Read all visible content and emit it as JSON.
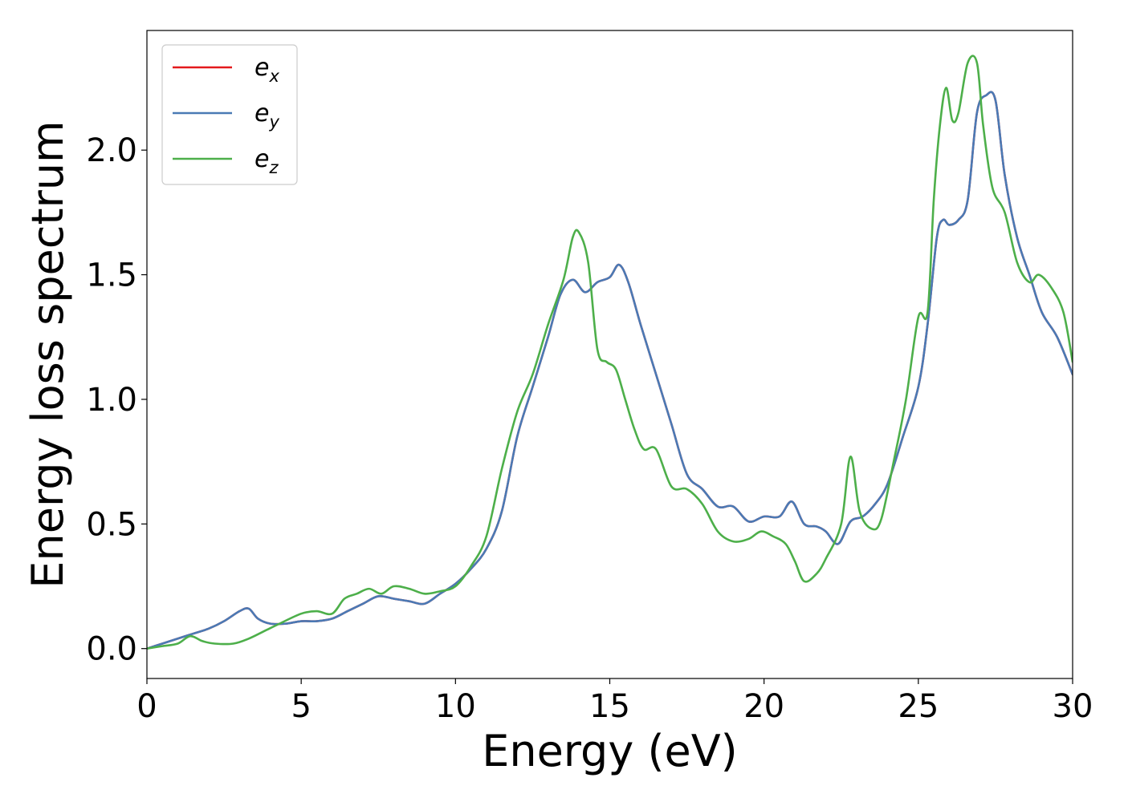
{
  "chart_data": {
    "type": "line",
    "xlabel": "Energy (eV)",
    "ylabel": "Energy loss spectrum",
    "xlim": [
      0,
      30
    ],
    "ylim": [
      -0.12,
      2.48
    ],
    "xticks": [
      0,
      5,
      10,
      15,
      20,
      25,
      30
    ],
    "xtick_labels": [
      "0",
      "5",
      "10",
      "15",
      "20",
      "25",
      "30"
    ],
    "yticks": [
      0.0,
      0.5,
      1.0,
      1.5,
      2.0
    ],
    "ytick_labels": [
      "0.0",
      "0.5",
      "1.0",
      "1.5",
      "2.0"
    ],
    "grid": false,
    "legend_position": "top-left",
    "series": [
      {
        "name": "e_x",
        "base": "e",
        "subscript": "x",
        "color": "#e41a1c",
        "x": [
          0,
          0.5,
          1.0,
          1.5,
          2.0,
          2.5,
          3.0,
          3.3,
          3.6,
          4.0,
          4.5,
          5.0,
          5.5,
          6.0,
          6.5,
          7.0,
          7.5,
          8.0,
          8.5,
          9.0,
          9.5,
          10.0,
          10.5,
          11.0,
          11.5,
          12.0,
          12.5,
          13.0,
          13.4,
          13.8,
          14.2,
          14.6,
          15.0,
          15.3,
          15.6,
          16.0,
          16.5,
          17.0,
          17.5,
          18.0,
          18.5,
          19.0,
          19.5,
          20.0,
          20.5,
          20.9,
          21.3,
          21.7,
          22.0,
          22.4,
          22.8,
          23.2,
          23.6,
          24.0,
          24.5,
          25.0,
          25.3,
          25.6,
          25.8,
          26.0,
          26.3,
          26.6,
          26.9,
          27.2,
          27.5,
          27.8,
          28.2,
          28.6,
          29.0,
          29.5,
          30.0
        ],
        "y": [
          0.0,
          0.02,
          0.04,
          0.06,
          0.08,
          0.11,
          0.15,
          0.16,
          0.12,
          0.1,
          0.1,
          0.11,
          0.11,
          0.12,
          0.15,
          0.18,
          0.21,
          0.2,
          0.19,
          0.18,
          0.22,
          0.26,
          0.32,
          0.4,
          0.55,
          0.85,
          1.05,
          1.25,
          1.42,
          1.48,
          1.43,
          1.47,
          1.49,
          1.54,
          1.47,
          1.3,
          1.1,
          0.9,
          0.7,
          0.64,
          0.57,
          0.57,
          0.51,
          0.53,
          0.53,
          0.59,
          0.5,
          0.49,
          0.47,
          0.42,
          0.51,
          0.53,
          0.58,
          0.66,
          0.85,
          1.05,
          1.3,
          1.65,
          1.72,
          1.7,
          1.72,
          1.8,
          2.15,
          2.22,
          2.2,
          1.9,
          1.65,
          1.5,
          1.35,
          1.25,
          1.1
        ]
      },
      {
        "name": "e_y",
        "base": "e",
        "subscript": "y",
        "color": "#4a7ab5",
        "x": [
          0,
          0.5,
          1.0,
          1.5,
          2.0,
          2.5,
          3.0,
          3.3,
          3.6,
          4.0,
          4.5,
          5.0,
          5.5,
          6.0,
          6.5,
          7.0,
          7.5,
          8.0,
          8.5,
          9.0,
          9.5,
          10.0,
          10.5,
          11.0,
          11.5,
          12.0,
          12.5,
          13.0,
          13.4,
          13.8,
          14.2,
          14.6,
          15.0,
          15.3,
          15.6,
          16.0,
          16.5,
          17.0,
          17.5,
          18.0,
          18.5,
          19.0,
          19.5,
          20.0,
          20.5,
          20.9,
          21.3,
          21.7,
          22.0,
          22.4,
          22.8,
          23.2,
          23.6,
          24.0,
          24.5,
          25.0,
          25.3,
          25.6,
          25.8,
          26.0,
          26.3,
          26.6,
          26.9,
          27.2,
          27.5,
          27.8,
          28.2,
          28.6,
          29.0,
          29.5,
          30.0
        ],
        "y": [
          0.0,
          0.02,
          0.04,
          0.06,
          0.08,
          0.11,
          0.15,
          0.16,
          0.12,
          0.1,
          0.1,
          0.11,
          0.11,
          0.12,
          0.15,
          0.18,
          0.21,
          0.2,
          0.19,
          0.18,
          0.22,
          0.26,
          0.32,
          0.4,
          0.55,
          0.85,
          1.05,
          1.25,
          1.42,
          1.48,
          1.43,
          1.47,
          1.49,
          1.54,
          1.47,
          1.3,
          1.1,
          0.9,
          0.7,
          0.64,
          0.57,
          0.57,
          0.51,
          0.53,
          0.53,
          0.59,
          0.5,
          0.49,
          0.47,
          0.42,
          0.51,
          0.53,
          0.58,
          0.66,
          0.85,
          1.05,
          1.3,
          1.65,
          1.72,
          1.7,
          1.72,
          1.8,
          2.15,
          2.22,
          2.2,
          1.9,
          1.65,
          1.5,
          1.35,
          1.25,
          1.1
        ]
      },
      {
        "name": "e_z",
        "base": "e",
        "subscript": "z",
        "color": "#4daf4a",
        "x": [
          0,
          0.5,
          1.0,
          1.4,
          1.8,
          2.2,
          2.8,
          3.3,
          3.8,
          4.3,
          5.0,
          5.5,
          6.0,
          6.4,
          6.8,
          7.2,
          7.6,
          8.0,
          8.5,
          9.0,
          9.5,
          10.0,
          10.5,
          11.0,
          11.5,
          12.0,
          12.5,
          13.0,
          13.5,
          13.8,
          14.0,
          14.3,
          14.6,
          14.9,
          15.2,
          15.5,
          15.8,
          16.1,
          16.5,
          17.0,
          17.5,
          18.0,
          18.5,
          19.0,
          19.5,
          19.9,
          20.3,
          20.7,
          21.0,
          21.3,
          21.7,
          22.0,
          22.5,
          22.8,
          23.1,
          23.5,
          23.8,
          24.2,
          24.6,
          25.0,
          25.3,
          25.5,
          25.7,
          25.9,
          26.1,
          26.3,
          26.6,
          26.9,
          27.1,
          27.4,
          27.8,
          28.2,
          28.6,
          28.9,
          29.3,
          29.7,
          30.0
        ],
        "y": [
          0.0,
          0.01,
          0.02,
          0.05,
          0.03,
          0.02,
          0.02,
          0.04,
          0.07,
          0.1,
          0.14,
          0.15,
          0.14,
          0.2,
          0.22,
          0.24,
          0.22,
          0.25,
          0.24,
          0.22,
          0.23,
          0.25,
          0.33,
          0.45,
          0.72,
          0.95,
          1.1,
          1.3,
          1.48,
          1.65,
          1.67,
          1.55,
          1.2,
          1.15,
          1.12,
          1.0,
          0.88,
          0.8,
          0.8,
          0.65,
          0.64,
          0.58,
          0.47,
          0.43,
          0.44,
          0.47,
          0.45,
          0.42,
          0.35,
          0.27,
          0.3,
          0.36,
          0.5,
          0.77,
          0.55,
          0.48,
          0.52,
          0.75,
          1.0,
          1.33,
          1.35,
          1.8,
          2.1,
          2.25,
          2.12,
          2.15,
          2.35,
          2.35,
          2.1,
          1.85,
          1.75,
          1.55,
          1.47,
          1.5,
          1.45,
          1.35,
          1.15
        ]
      }
    ]
  }
}
